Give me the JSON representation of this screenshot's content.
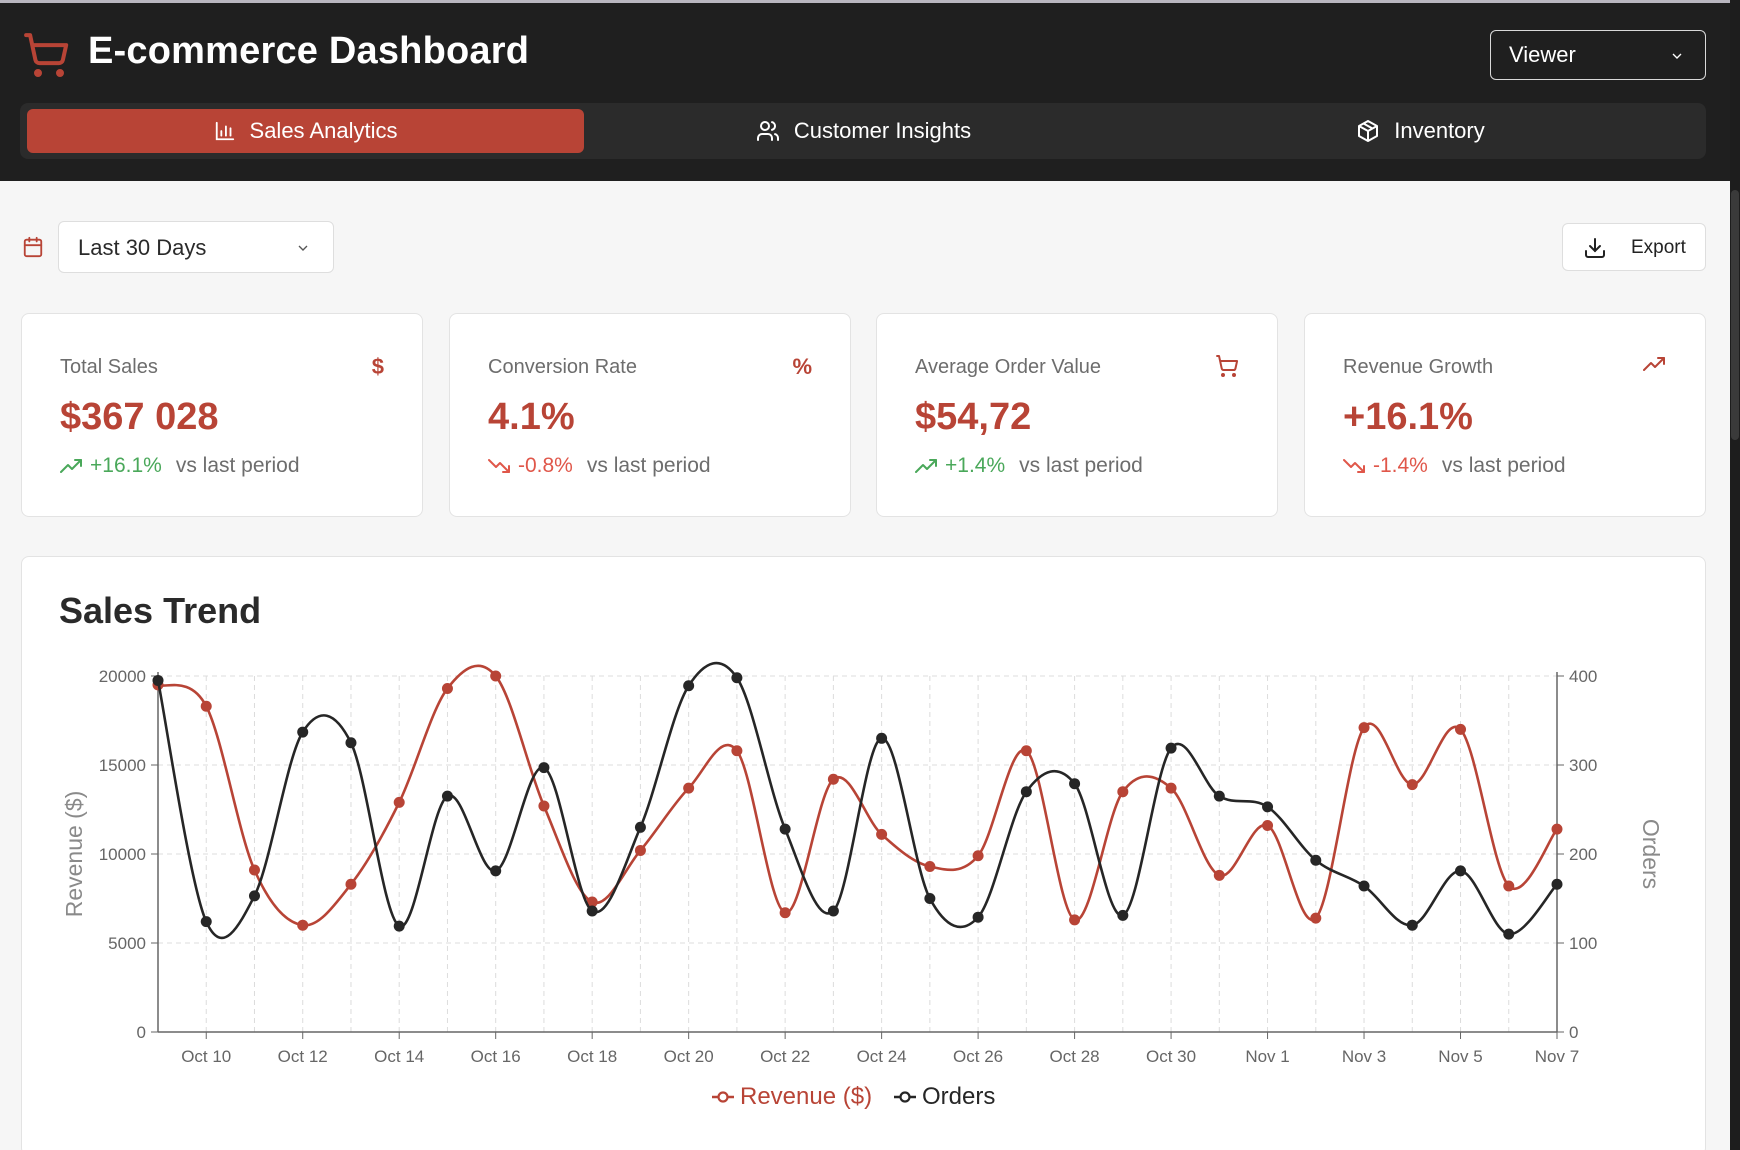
{
  "app": {
    "title": "E-commerce Dashboard",
    "role": "Viewer"
  },
  "tabs": [
    {
      "label": "Sales Analytics",
      "icon": "bar-chart-icon",
      "active": true
    },
    {
      "label": "Customer Insights",
      "icon": "users-icon",
      "active": false
    },
    {
      "label": "Inventory",
      "icon": "package-icon",
      "active": false
    }
  ],
  "toolbar": {
    "range": "Last 30 Days",
    "export_label": "Export"
  },
  "kpis": [
    {
      "label": "Total Sales",
      "icon": "dollar-icon",
      "value": "$367 028",
      "delta": "+16.1%",
      "trend": "up",
      "compare": "vs last period"
    },
    {
      "label": "Conversion Rate",
      "icon": "percent-icon",
      "value": "4.1%",
      "delta": "-0.8%",
      "trend": "down",
      "compare": "vs last period"
    },
    {
      "label": "Average Order Value",
      "icon": "cart-icon",
      "value": "$54,72",
      "delta": "+1.4%",
      "trend": "up",
      "compare": "vs last period"
    },
    {
      "label": "Revenue Growth",
      "icon": "trending-up-icon",
      "value": "+16.1%",
      "delta": "-1.4%",
      "trend": "down",
      "compare": "vs last period"
    }
  ],
  "colors": {
    "accent": "#b84436",
    "dark": "#1f1f1f",
    "up": "#4aa85a",
    "down": "#e0574a",
    "orders_line": "#262626"
  },
  "chart_data": {
    "type": "line",
    "title": "Sales Trend",
    "x": [
      "Oct 9",
      "Oct 10",
      "Oct 11",
      "Oct 12",
      "Oct 13",
      "Oct 14",
      "Oct 15",
      "Oct 16",
      "Oct 17",
      "Oct 18",
      "Oct 19",
      "Oct 20",
      "Oct 21",
      "Oct 22",
      "Oct 23",
      "Oct 24",
      "Oct 25",
      "Oct 26",
      "Oct 27",
      "Oct 28",
      "Oct 29",
      "Oct 30",
      "Oct 31",
      "Nov 1",
      "Nov 2",
      "Nov 3",
      "Nov 4",
      "Nov 5",
      "Nov 6",
      "Nov 7"
    ],
    "xticks": [
      "Oct 10",
      "Oct 12",
      "Oct 14",
      "Oct 16",
      "Oct 18",
      "Oct 20",
      "Oct 22",
      "Oct 24",
      "Oct 26",
      "Oct 28",
      "Oct 30",
      "Nov 1",
      "Nov 3",
      "Nov 5",
      "Nov 7"
    ],
    "series": [
      {
        "name": "Revenue ($)",
        "axis": "left",
        "color": "#b84436",
        "values": [
          19500,
          18300,
          9100,
          6000,
          8300,
          12900,
          19300,
          20000,
          12700,
          7300,
          10200,
          13700,
          15800,
          6700,
          14200,
          11100,
          9300,
          9900,
          15800,
          6300,
          13500,
          13700,
          8800,
          11600,
          6400,
          17100,
          13900,
          17000,
          8200,
          11400
        ]
      },
      {
        "name": "Orders",
        "axis": "right",
        "color": "#262626",
        "values": [
          395,
          124,
          153,
          337,
          325,
          119,
          265,
          181,
          297,
          136,
          230,
          389,
          398,
          228,
          136,
          330,
          150,
          129,
          270,
          279,
          131,
          319,
          265,
          253,
          193,
          164,
          120,
          181,
          110,
          166
        ]
      }
    ],
    "ylabel_left": "Revenue ($)",
    "ylim_left": [
      0,
      20000
    ],
    "yticks_left": [
      0,
      5000,
      10000,
      15000,
      20000
    ],
    "ylabel_right": "Orders",
    "ylim_right": [
      0,
      400
    ],
    "yticks_right": [
      0,
      100,
      200,
      300,
      400
    ],
    "grid": true,
    "legend": "bottom-center"
  }
}
